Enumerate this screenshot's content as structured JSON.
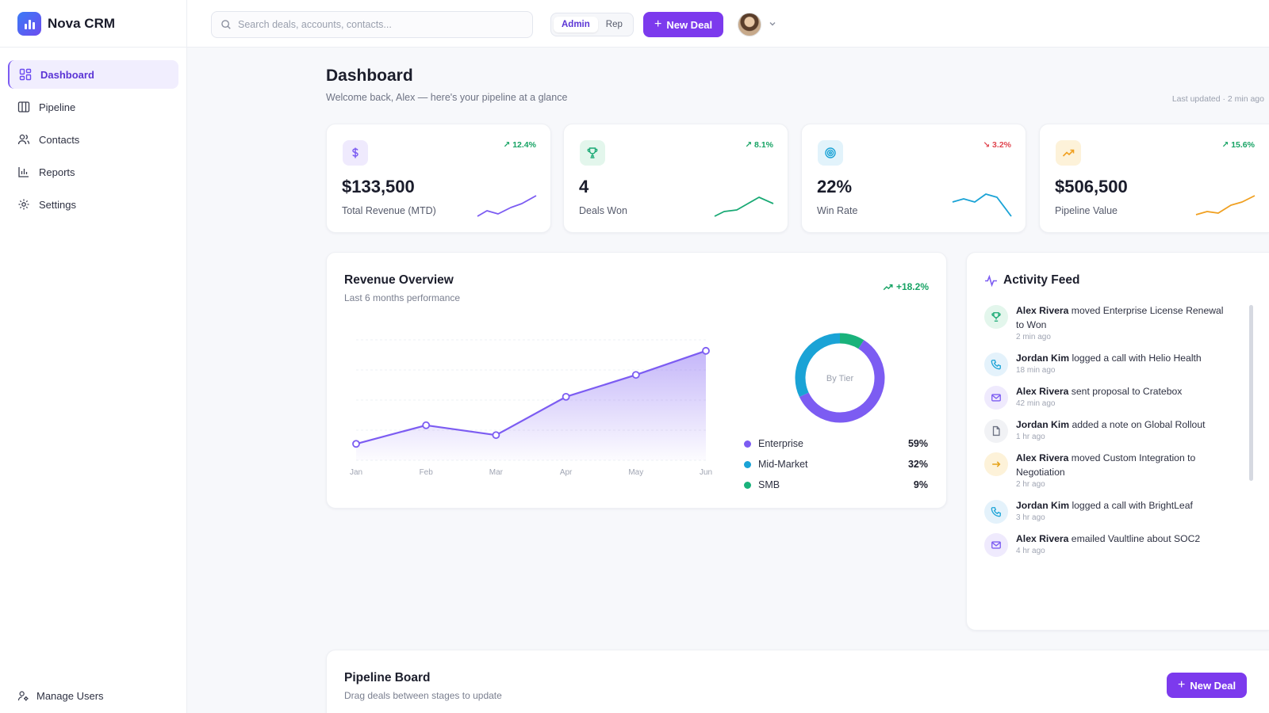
{
  "app": {
    "name": "Nova CRM"
  },
  "sidebar": {
    "items": [
      {
        "label": "Dashboard",
        "icon": "dashboard-icon",
        "active": true
      },
      {
        "label": "Pipeline",
        "icon": "pipeline-icon"
      },
      {
        "label": "Contacts",
        "icon": "contacts-icon"
      },
      {
        "label": "Reports",
        "icon": "reports-icon"
      },
      {
        "label": "Settings",
        "icon": "gear-icon"
      }
    ],
    "footer_label": "Manage Users"
  },
  "header": {
    "search_placeholder": "Search deals, accounts, contacts...",
    "roles": [
      "Admin",
      "Rep"
    ],
    "active_role": "Admin",
    "new_deal_label": "New Deal"
  },
  "page": {
    "title": "Dashboard",
    "subtitle": "Welcome back, Alex — here's your pipeline at a glance",
    "last_updated": "Last updated · 2 min ago"
  },
  "kpis": [
    {
      "value": "$133,500",
      "label": "Total Revenue (MTD)",
      "change": "↗ 12.4%",
      "trend": "up",
      "icon": "dollar-icon",
      "color": "#7c5cf2"
    },
    {
      "value": "4",
      "label": "Deals Won",
      "change": "↗ 8.1%",
      "trend": "up",
      "icon": "trophy-icon",
      "color": "#19a974"
    },
    {
      "value": "22%",
      "label": "Win Rate",
      "change": "↘ 3.2%",
      "trend": "down",
      "icon": "target-icon",
      "color": "#1aa3d6"
    },
    {
      "value": "$506,500",
      "label": "Pipeline Value",
      "change": "↗ 15.6%",
      "trend": "up",
      "icon": "trending-up-icon",
      "color": "#f0a021"
    }
  ],
  "revenue": {
    "title": "Revenue Overview",
    "subtitle": "Last 6 months performance",
    "change": "+18.2%",
    "donut_label": "By Tier"
  },
  "chart_data": [
    {
      "type": "area",
      "title": "Revenue Overview",
      "subtitle": "Last 6 months performance",
      "categories": [
        "Jan",
        "Feb",
        "Mar",
        "Apr",
        "May",
        "Jun"
      ],
      "series": [
        {
          "values": [
            15,
            32,
            23,
            58,
            78,
            100
          ]
        }
      ],
      "ylim": [
        0,
        110
      ],
      "grid": true,
      "color": "#7c5cf2"
    },
    {
      "type": "pie",
      "title": "By Tier",
      "categories": [
        "Enterprise",
        "Mid-Market",
        "SMB"
      ],
      "values": [
        59,
        32,
        9
      ],
      "value_labels": [
        "59%",
        "32%",
        "9%"
      ],
      "colors": [
        "#7c5cf2",
        "#1aa3d6",
        "#19b27b"
      ]
    }
  ],
  "activity": {
    "title": "Activity Feed",
    "items": [
      {
        "actor": "Alex Rivera",
        "text": "moved Enterprise License Renewal to Won",
        "time": "2 min ago",
        "icon": "trophy-icon",
        "bg": "#e3f6ec",
        "fg": "#19a974"
      },
      {
        "actor": "Jordan Kim",
        "text": "logged a call with Helio Health",
        "time": "18 min ago",
        "icon": "phone-icon",
        "bg": "#e4f2fb",
        "fg": "#1aa3d6"
      },
      {
        "actor": "Alex Rivera",
        "text": "sent proposal to Cratebox",
        "time": "42 min ago",
        "icon": "mail-icon",
        "bg": "#efeafd",
        "fg": "#7c5cf2"
      },
      {
        "actor": "Jordan Kim",
        "text": "added a note on Global Rollout",
        "time": "1 hr ago",
        "icon": "note-icon",
        "bg": "#f1f2f5",
        "fg": "#6e7384"
      },
      {
        "actor": "Alex Rivera",
        "text": "moved Custom Integration to Negotiation",
        "time": "2 hr ago",
        "icon": "arrow-right-icon",
        "bg": "#fdf2d9",
        "fg": "#e5a117"
      },
      {
        "actor": "Jordan Kim",
        "text": "logged a call with BrightLeaf",
        "time": "3 hr ago",
        "icon": "phone-icon",
        "bg": "#e4f2fb",
        "fg": "#1aa3d6"
      },
      {
        "actor": "Alex Rivera",
        "text": "emailed Vaultline about SOC2",
        "time": "4 hr ago",
        "icon": "mail-icon",
        "bg": "#efeafd",
        "fg": "#7c5cf2"
      }
    ]
  },
  "pipeline_board": {
    "title": "Pipeline Board",
    "subtitle": "Drag deals between stages to update",
    "new_deal_label": "New Deal"
  }
}
